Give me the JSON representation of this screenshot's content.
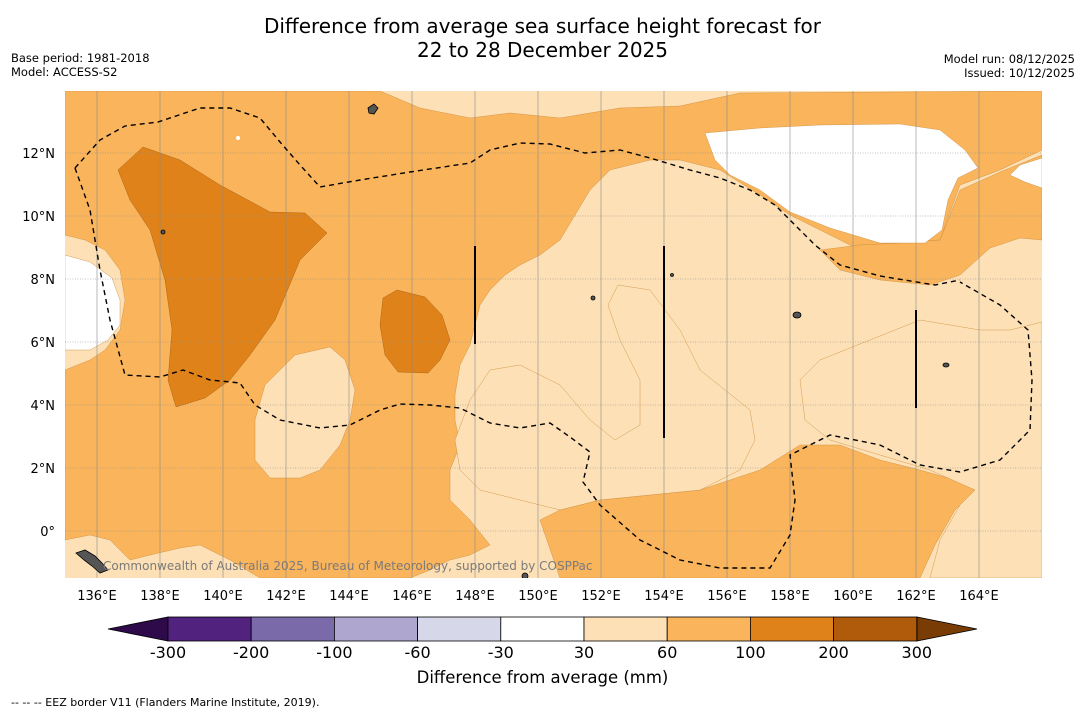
{
  "title_line1": "Difference from average sea surface height forecast for",
  "title_line2": "22 to 28 December 2025",
  "meta_left": {
    "base_period": "Base period: 1981-2018",
    "model": "Model: ACCESS-S2"
  },
  "meta_right": {
    "model_run": "Model run: 08/12/2025",
    "issued": "Issued: 10/12/2025"
  },
  "credit": "Commonwealth of Australia 2025, Bureau of Meteorology, supported by COSPPac",
  "x_ticks": [
    "136°E",
    "138°E",
    "140°E",
    "142°E",
    "144°E",
    "146°E",
    "148°E",
    "150°E",
    "152°E",
    "154°E",
    "156°E",
    "158°E",
    "160°E",
    "162°E",
    "164°E"
  ],
  "y_ticks": [
    "12°N",
    "10°N",
    "8°N",
    "6°N",
    "4°N",
    "2°N",
    "0°"
  ],
  "colorbar": {
    "title": "Difference from average (mm)",
    "labels": [
      "-300",
      "-200",
      "-100",
      "-60",
      "-30",
      "30",
      "60",
      "100",
      "200",
      "300"
    ],
    "colors": [
      "#52227f",
      "#7b6aa9",
      "#aea6cf",
      "#d7d7ea",
      "#ffffff",
      "#fde0b5",
      "#f9b45c",
      "#e0821a",
      "#b05a0c"
    ],
    "under_color": "#2e0a4a",
    "over_color": "#7a3c05"
  },
  "footnote": "--  --  -- EEZ border V11 (Flanders Marine Institute, 2019).",
  "colors": {
    "level_30_60": "#fde0b5",
    "level_60_100": "#f9b45c",
    "level_100_200": "#e0821a",
    "level_neutral": "#ffffff"
  }
}
